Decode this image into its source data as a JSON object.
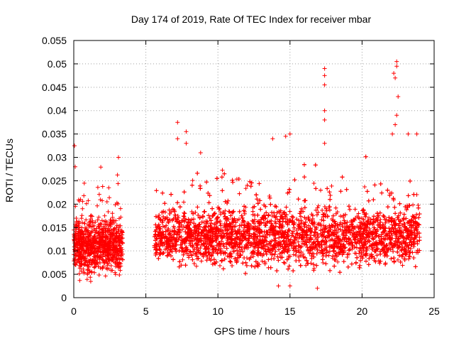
{
  "chart_data": {
    "type": "scatter",
    "title": "Day 174 of 2019, Rate Of TEC Index for receiver mbar",
    "xlabel": "GPS time / hours",
    "ylabel": "ROTI / TECUs",
    "xlim": [
      0,
      25
    ],
    "ylim": [
      0,
      0.055
    ],
    "x_ticks": [
      "0",
      "5",
      "10",
      "15",
      "20",
      "25"
    ],
    "y_ticks": [
      "0",
      "0.005",
      "0.01",
      "0.015",
      "0.02",
      "0.025",
      "0.03",
      "0.035",
      "0.04",
      "0.045",
      "0.05",
      "0.055"
    ],
    "grid": true,
    "marker": "+",
    "color": "#ff0000",
    "data_gap_hours": [
      3.4,
      5.6
    ],
    "series": [
      {
        "name": "ROTI",
        "segments": [
          {
            "x_start": 0.0,
            "x_end": 3.4,
            "baseline": 0.011,
            "spread": 0.006
          },
          {
            "x_start": 5.6,
            "x_end": 24.0,
            "baseline": 0.013,
            "spread": 0.006
          }
        ],
        "notable_points": [
          {
            "x": 0.05,
            "y": 0.0325
          },
          {
            "x": 0.1,
            "y": 0.028
          },
          {
            "x": 3.1,
            "y": 0.03
          },
          {
            "x": 7.2,
            "y": 0.0375
          },
          {
            "x": 7.2,
            "y": 0.034
          },
          {
            "x": 7.8,
            "y": 0.0355
          },
          {
            "x": 7.8,
            "y": 0.033
          },
          {
            "x": 8.8,
            "y": 0.031
          },
          {
            "x": 13.8,
            "y": 0.034
          },
          {
            "x": 14.7,
            "y": 0.0345
          },
          {
            "x": 15.0,
            "y": 0.035
          },
          {
            "x": 15.0,
            "y": 0.0025
          },
          {
            "x": 14.2,
            "y": 0.0025
          },
          {
            "x": 17.4,
            "y": 0.049
          },
          {
            "x": 17.4,
            "y": 0.0475
          },
          {
            "x": 17.4,
            "y": 0.0455
          },
          {
            "x": 17.4,
            "y": 0.04
          },
          {
            "x": 17.4,
            "y": 0.038
          },
          {
            "x": 17.4,
            "y": 0.033
          },
          {
            "x": 16.9,
            "y": 0.002
          },
          {
            "x": 22.2,
            "y": 0.048
          },
          {
            "x": 22.3,
            "y": 0.047
          },
          {
            "x": 22.4,
            "y": 0.0505
          },
          {
            "x": 22.4,
            "y": 0.0495
          },
          {
            "x": 22.5,
            "y": 0.043
          },
          {
            "x": 22.4,
            "y": 0.039
          },
          {
            "x": 22.3,
            "y": 0.037
          },
          {
            "x": 22.1,
            "y": 0.035
          },
          {
            "x": 23.2,
            "y": 0.035
          },
          {
            "x": 23.8,
            "y": 0.035
          }
        ]
      }
    ]
  }
}
